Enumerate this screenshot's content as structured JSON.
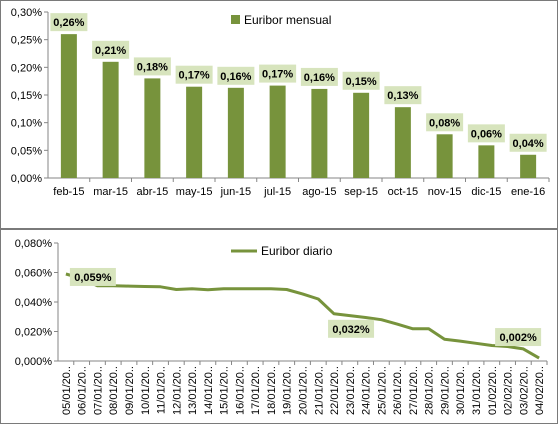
{
  "chart_data": [
    {
      "type": "bar",
      "legend": "Euribor mensual",
      "legend_position": "top",
      "categories": [
        "feb-15",
        "mar-15",
        "abr-15",
        "may-15",
        "jun-15",
        "jul-15",
        "ago-15",
        "sep-15",
        "oct-15",
        "nov-15",
        "dic-15",
        "ene-16"
      ],
      "values": [
        0.26,
        0.21,
        0.18,
        0.165,
        0.163,
        0.167,
        0.161,
        0.154,
        0.128,
        0.079,
        0.059,
        0.042
      ],
      "data_labels": [
        "0,26%",
        "0,21%",
        "0,18%",
        "0,17%",
        "0,16%",
        "0,17%",
        "0,16%",
        "0,15%",
        "0,13%",
        "0,08%",
        "0,06%",
        "0,04%"
      ],
      "ylim": [
        0,
        0.3
      ],
      "y_ticks": [
        "0,00%",
        "0,05%",
        "0,10%",
        "0,15%",
        "0,20%",
        "0,25%",
        "0,30%"
      ],
      "grid": false,
      "color": "#77933c"
    },
    {
      "type": "line",
      "legend": "Euribor diario",
      "legend_position": "top",
      "categories": [
        "05/01/20..",
        "06/01/20..",
        "07/01/20..",
        "08/01/20..",
        "09/01/20..",
        "10/01/20..",
        "11/01/20..",
        "12/01/20..",
        "13/01/20..",
        "14/01/20..",
        "15/01/20..",
        "16/01/20..",
        "17/01/20..",
        "18/01/20..",
        "19/01/20..",
        "20/01/20..",
        "21/01/20..",
        "22/01/20..",
        "23/01/20..",
        "24/01/20..",
        "25/01/20..",
        "26/01/20..",
        "27/01/20..",
        "28/01/20..",
        "29/01/20..",
        "30/01/20..",
        "31/01/20..",
        "01/02/20..",
        "02/02/20..",
        "03/02/20..",
        "04/02/20.."
      ],
      "values": [
        0.059,
        0.056,
        0.051,
        0.051,
        0.0508,
        0.0505,
        0.0503,
        0.0485,
        0.049,
        0.0483,
        0.049,
        0.049,
        0.049,
        0.049,
        0.0485,
        0.0455,
        0.042,
        0.032,
        0.0308,
        0.0295,
        0.028,
        0.025,
        0.0218,
        0.0218,
        0.0148,
        0.0135,
        0.012,
        0.0105,
        0.0098,
        0.0082,
        0.002
      ],
      "annotations": [
        {
          "index": 0,
          "label": "0,059%"
        },
        {
          "index": 17,
          "label": "0,032%"
        },
        {
          "index": 30,
          "label": "0,002%"
        }
      ],
      "ylim": [
        0,
        0.08
      ],
      "y_ticks": [
        "0,000%",
        "0,020%",
        "0,040%",
        "0,060%",
        "0,080%"
      ],
      "grid": false,
      "color": "#77933c"
    }
  ]
}
